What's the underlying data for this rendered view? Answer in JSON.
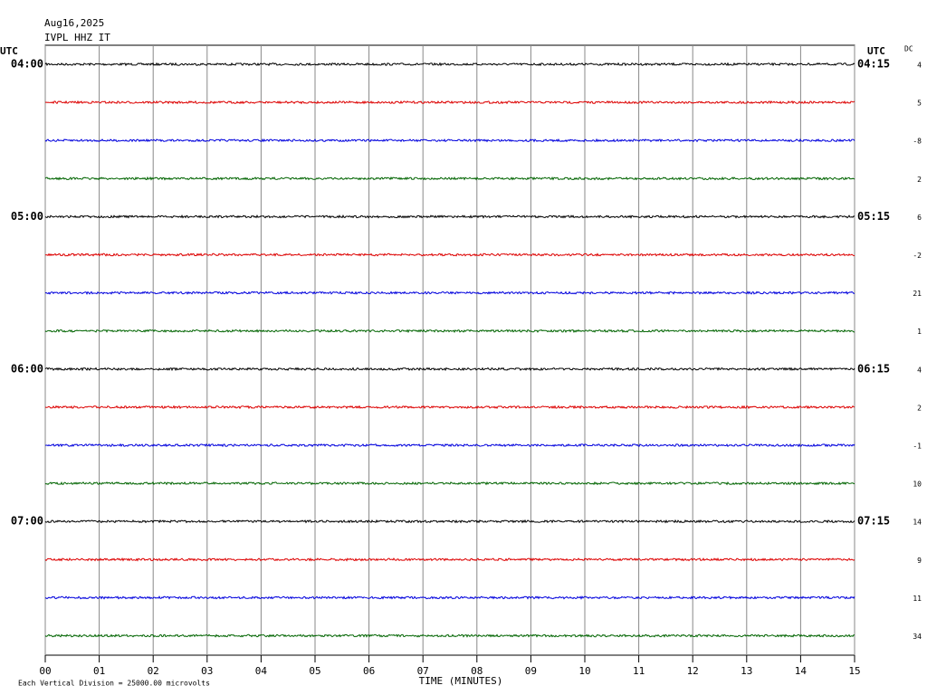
{
  "chart_data": {
    "type": "helicorder",
    "date": "Aug16,2025",
    "station": "IVPL HHZ IT",
    "left_header": "UTC",
    "right_header": "UTC",
    "dc_header": "DC",
    "xlabel": "TIME (MINUTES)",
    "footnote": "Each Vertical Division = 25000.00 microvolts",
    "xlim": [
      0,
      15
    ],
    "xticks": [
      {
        "value": 0,
        "label": "00"
      },
      {
        "value": 1,
        "label": "01"
      },
      {
        "value": 2,
        "label": "02"
      },
      {
        "value": 3,
        "label": "03"
      },
      {
        "value": 4,
        "label": "04"
      },
      {
        "value": 5,
        "label": "05"
      },
      {
        "value": 6,
        "label": "06"
      },
      {
        "value": 7,
        "label": "07"
      },
      {
        "value": 8,
        "label": "08"
      },
      {
        "value": 9,
        "label": "09"
      },
      10,
      11,
      12,
      13,
      14,
      15
    ],
    "grid": true,
    "rows": [
      {
        "left_label": "04:00",
        "right_label": "04:15",
        "color": "#000000",
        "dc": 4
      },
      {
        "left_label": null,
        "right_label": null,
        "color": "#dd0000",
        "dc": 5
      },
      {
        "left_label": null,
        "right_label": null,
        "color": "#0000dd",
        "dc": -8
      },
      {
        "left_label": null,
        "right_label": null,
        "color": "#006400",
        "dc": 2
      },
      {
        "left_label": "05:00",
        "right_label": "05:15",
        "color": "#000000",
        "dc": 6
      },
      {
        "left_label": null,
        "right_label": null,
        "color": "#dd0000",
        "dc": -2
      },
      {
        "left_label": null,
        "right_label": null,
        "color": "#0000dd",
        "dc": 21
      },
      {
        "left_label": null,
        "right_label": null,
        "color": "#006400",
        "dc": 1
      },
      {
        "left_label": "06:00",
        "right_label": "06:15",
        "color": "#000000",
        "dc": 4
      },
      {
        "left_label": null,
        "right_label": null,
        "color": "#dd0000",
        "dc": 2
      },
      {
        "left_label": null,
        "right_label": null,
        "color": "#0000dd",
        "dc": -1
      },
      {
        "left_label": null,
        "right_label": null,
        "color": "#006400",
        "dc": 10
      },
      {
        "left_label": "07:00",
        "right_label": "07:15",
        "color": "#000000",
        "dc": 14
      },
      {
        "left_label": null,
        "right_label": null,
        "color": "#dd0000",
        "dc": 9
      },
      {
        "left_label": null,
        "right_label": null,
        "color": "#0000dd",
        "dc": 11
      },
      {
        "left_label": null,
        "right_label": null,
        "color": "#006400",
        "dc": 34
      }
    ]
  }
}
